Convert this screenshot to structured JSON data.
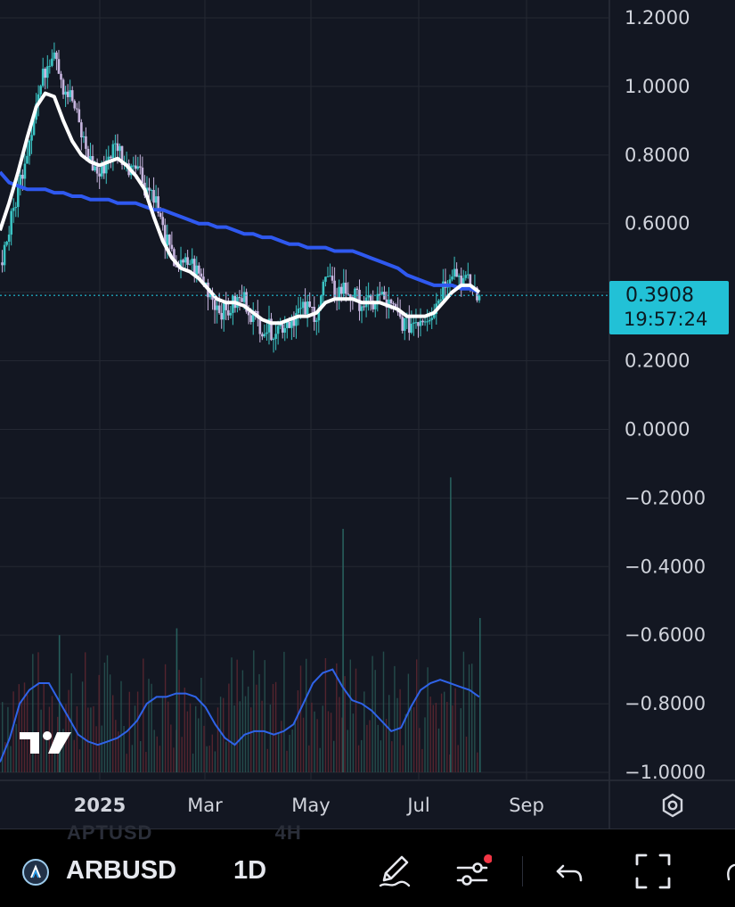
{
  "chart_data": {
    "type": "candlestick",
    "symbol": "ARBUSD",
    "interval": "1D",
    "y_axis": {
      "ticks": [
        "1.2000",
        "1.0000",
        "0.8000",
        "0.6000",
        "0.2000",
        "0.0000",
        "−0.2000",
        "−0.4000",
        "−0.6000",
        "−0.8000",
        "−1.0000"
      ],
      "range": [
        -1.0,
        1.2
      ]
    },
    "x_axis": {
      "ticks": [
        {
          "label": "2025",
          "bold": true
        },
        {
          "label": "Mar",
          "bold": false
        },
        {
          "label": "May",
          "bold": false
        },
        {
          "label": "Jul",
          "bold": false
        },
        {
          "label": "Sep",
          "bold": false
        }
      ]
    },
    "last_price": "0.3908",
    "countdown": "19:57:24",
    "close": [
      0.48,
      0.58,
      0.7,
      0.82,
      0.95,
      1.05,
      1.12,
      1.0,
      0.96,
      0.86,
      0.78,
      0.74,
      0.8,
      0.83,
      0.76,
      0.79,
      0.71,
      0.69,
      0.58,
      0.5,
      0.47,
      0.49,
      0.45,
      0.41,
      0.36,
      0.34,
      0.37,
      0.38,
      0.33,
      0.3,
      0.29,
      0.3,
      0.32,
      0.34,
      0.35,
      0.34,
      0.44,
      0.4,
      0.41,
      0.39,
      0.37,
      0.36,
      0.39,
      0.36,
      0.33,
      0.3,
      0.32,
      0.33,
      0.35,
      0.42,
      0.47,
      0.44,
      0.42,
      0.39
    ],
    "fast_ma": [
      0.58,
      0.66,
      0.75,
      0.85,
      0.94,
      0.98,
      0.97,
      0.9,
      0.84,
      0.8,
      0.78,
      0.77,
      0.78,
      0.79,
      0.77,
      0.74,
      0.7,
      0.62,
      0.55,
      0.5,
      0.47,
      0.46,
      0.44,
      0.41,
      0.38,
      0.37,
      0.37,
      0.36,
      0.34,
      0.32,
      0.31,
      0.31,
      0.32,
      0.33,
      0.33,
      0.34,
      0.37,
      0.38,
      0.38,
      0.38,
      0.37,
      0.37,
      0.37,
      0.36,
      0.35,
      0.33,
      0.33,
      0.33,
      0.34,
      0.37,
      0.4,
      0.42,
      0.42,
      0.4
    ],
    "slow_ma": [
      0.75,
      0.72,
      0.71,
      0.7,
      0.7,
      0.7,
      0.69,
      0.69,
      0.68,
      0.68,
      0.67,
      0.67,
      0.67,
      0.66,
      0.66,
      0.66,
      0.65,
      0.64,
      0.64,
      0.63,
      0.62,
      0.61,
      0.6,
      0.6,
      0.59,
      0.59,
      0.58,
      0.57,
      0.57,
      0.56,
      0.56,
      0.55,
      0.54,
      0.54,
      0.53,
      0.53,
      0.53,
      0.52,
      0.52,
      0.52,
      0.51,
      0.5,
      0.49,
      0.48,
      0.47,
      0.45,
      0.44,
      0.43,
      0.42,
      0.42,
      0.42,
      0.41,
      0.41,
      0.4
    ],
    "volume_line": [
      -0.97,
      -0.9,
      -0.8,
      -0.76,
      -0.74,
      -0.74,
      -0.79,
      -0.84,
      -0.89,
      -0.91,
      -0.92,
      -0.91,
      -0.9,
      -0.88,
      -0.85,
      -0.8,
      -0.78,
      -0.78,
      -0.77,
      -0.77,
      -0.78,
      -0.81,
      -0.86,
      -0.9,
      -0.92,
      -0.89,
      -0.88,
      -0.88,
      -0.89,
      -0.88,
      -0.86,
      -0.8,
      -0.74,
      -0.71,
      -0.7,
      -0.75,
      -0.79,
      -0.8,
      -0.82,
      -0.85,
      -0.88,
      -0.87,
      -0.81,
      -0.76,
      -0.74,
      -0.73,
      -0.74,
      -0.75,
      -0.76,
      -0.78
    ],
    "volume_spikes": [
      {
        "x_index": 6,
        "y_top": -0.6
      },
      {
        "x_index": 18,
        "y_top": -0.58
      },
      {
        "x_index": 35,
        "y_top": -0.29
      },
      {
        "x_index": 46,
        "y_top": -0.14
      },
      {
        "x_index": 49,
        "y_top": -0.55
      }
    ],
    "colors": {
      "background": "#131722",
      "grid": "#242833",
      "up": "#3bc4c4",
      "down": "#c7b5df",
      "fast_ma": "#ffffff",
      "slow_ma": "#2f59f0",
      "volume_line": "#2f63e8",
      "last_price_line": "#22c1d6",
      "price_tag": "#22c1d6"
    }
  },
  "bottom_bar": {
    "symbol": "ARBUSD",
    "interval": "1D",
    "ghost_symbol": "APTUSD",
    "ghost_interval": "4H",
    "icons": [
      "arbitrum-logo-icon",
      "pen-icon",
      "indicators-icon",
      "undo-icon",
      "fullscreen-icon"
    ]
  }
}
